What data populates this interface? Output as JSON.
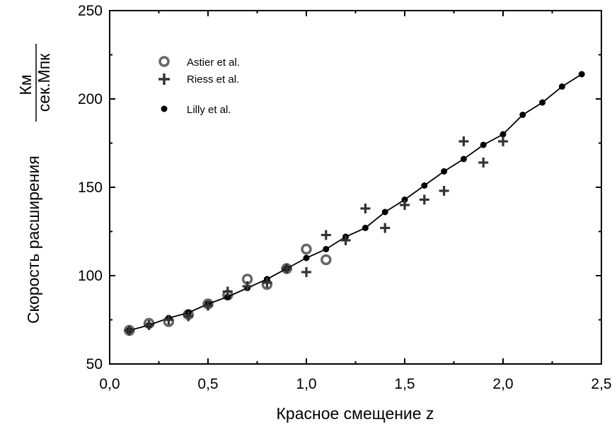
{
  "chart_data": {
    "type": "scatter",
    "xlabel": "Красное смещение z",
    "ylabel": "Скорость расширения",
    "ylabel_unit_numerator": "Км",
    "ylabel_unit_denominator": "сек.Мпк",
    "xlim": [
      0,
      2.5
    ],
    "ylim": [
      50,
      250
    ],
    "xticks": [
      0,
      0.5,
      1.0,
      1.5,
      2.0,
      2.5
    ],
    "xtick_labels": [
      "0,0",
      "0,5",
      "1,0",
      "1,5",
      "2,0",
      "2,5"
    ],
    "yticks": [
      50,
      100,
      150,
      200,
      250
    ],
    "ytick_labels": [
      "50",
      "100",
      "150",
      "200",
      "250"
    ],
    "grid": false,
    "legend_position": "top-left",
    "series": [
      {
        "name": "Astier et al.",
        "marker": "open-circle",
        "color": "#666666",
        "x": [
          0.1,
          0.2,
          0.3,
          0.4,
          0.5,
          0.6,
          0.7,
          0.8,
          0.9,
          1.0,
          1.1
        ],
        "y": [
          69,
          73,
          74,
          78,
          84,
          89,
          98,
          95,
          104,
          115,
          109
        ]
      },
      {
        "name": "Riess et al.",
        "marker": "plus",
        "color": "#333333",
        "x": [
          0.1,
          0.2,
          0.3,
          0.4,
          0.5,
          0.6,
          0.7,
          0.8,
          0.9,
          1.0,
          1.1,
          1.2,
          1.3,
          1.4,
          1.5,
          1.6,
          1.7,
          1.8,
          1.9,
          2.0
        ],
        "y": [
          69,
          72,
          75,
          77,
          83,
          91,
          94,
          96,
          104,
          102,
          123,
          120,
          138,
          127,
          140,
          143,
          148,
          176,
          164,
          176
        ]
      },
      {
        "name": "Lilly et al.",
        "marker": "filled-circle-line",
        "color": "#000000",
        "x": [
          0.1,
          0.2,
          0.3,
          0.4,
          0.5,
          0.6,
          0.7,
          0.8,
          0.9,
          1.0,
          1.1,
          1.2,
          1.3,
          1.4,
          1.5,
          1.6,
          1.7,
          1.8,
          1.9,
          2.0,
          2.1,
          2.2,
          2.3,
          2.4
        ],
        "y": [
          69,
          72,
          76,
          79,
          84,
          88,
          93,
          98,
          104,
          110,
          115,
          122,
          127,
          136,
          143,
          151,
          159,
          166,
          174,
          180,
          191,
          198,
          207,
          214
        ]
      }
    ]
  }
}
